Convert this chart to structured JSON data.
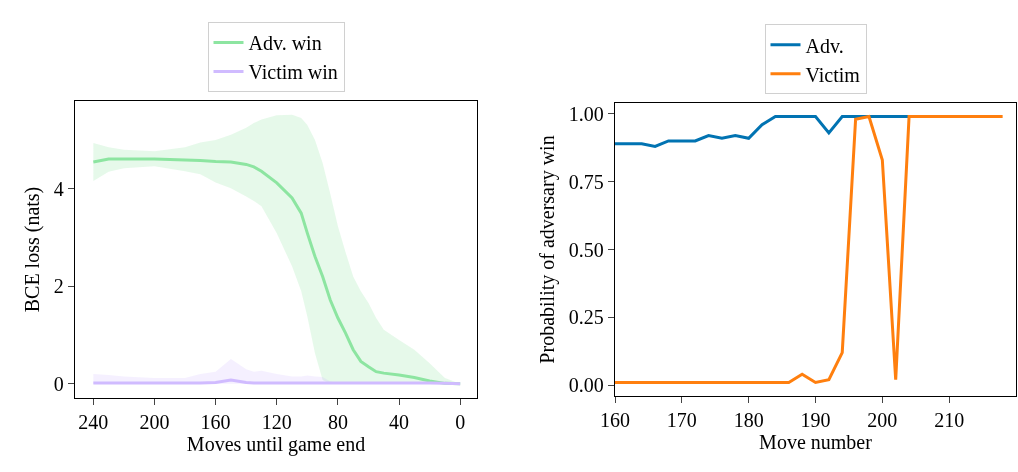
{
  "chart_data": [
    {
      "type": "line",
      "xlabel": "Moves until game end",
      "ylabel": "BCE loss (nats)",
      "legend": "top",
      "xlim": [
        252,
        -11
      ],
      "xticks": [
        240,
        200,
        160,
        120,
        80,
        40,
        0
      ],
      "ylim": [
        -0.29,
        5.8
      ],
      "yticks": [
        0,
        2,
        4
      ],
      "x": [
        240,
        230,
        220,
        200,
        180,
        170,
        160,
        150,
        140,
        135,
        130,
        120,
        110,
        104,
        100,
        95,
        90,
        85,
        80,
        75,
        70,
        65,
        60,
        55,
        50,
        40,
        30,
        20,
        10,
        0
      ],
      "series": [
        {
          "name": "Adv. win",
          "color": "#8de5a1",
          "values": [
            4.55,
            4.61,
            4.61,
            4.61,
            4.59,
            4.58,
            4.56,
            4.55,
            4.5,
            4.45,
            4.36,
            4.12,
            3.81,
            3.5,
            3.09,
            2.61,
            2.2,
            1.72,
            1.35,
            1.04,
            0.7,
            0.46,
            0.35,
            0.25,
            0.22,
            0.18,
            0.13,
            0.06,
            0.01,
            0
          ],
          "upper": [
            4.94,
            4.85,
            4.8,
            4.77,
            4.85,
            4.95,
            5.0,
            5.11,
            5.25,
            5.35,
            5.42,
            5.51,
            5.52,
            5.45,
            5.31,
            5.0,
            4.53,
            3.9,
            3.23,
            2.7,
            2.2,
            1.9,
            1.66,
            1.35,
            1.11,
            0.9,
            0.7,
            0.42,
            0.12,
            0
          ],
          "lower": [
            4.16,
            4.35,
            4.42,
            4.46,
            4.36,
            4.3,
            4.13,
            4.01,
            3.84,
            3.75,
            3.64,
            3.09,
            2.41,
            1.9,
            1.38,
            0.63,
            0.08,
            0,
            0,
            0,
            0,
            0,
            0,
            0,
            0,
            0,
            0,
            0,
            0,
            0
          ]
        },
        {
          "name": "Victim win",
          "color": "#d0bbff",
          "values": [
            0.02,
            0.02,
            0.02,
            0.02,
            0.02,
            0.02,
            0.03,
            0.08,
            0.03,
            0.02,
            0.02,
            0.02,
            0.02,
            0.02,
            0.02,
            0.02,
            0.02,
            0.02,
            0.02,
            0.02,
            0.02,
            0.02,
            0.02,
            0.02,
            0.02,
            0.02,
            0.02,
            0.02,
            0.01,
            0
          ],
          "upper": [
            0.2,
            0.18,
            0.15,
            0.12,
            0.12,
            0.2,
            0.25,
            0.51,
            0.3,
            0.25,
            0.27,
            0.2,
            0.15,
            0.15,
            0.17,
            0.15,
            0.14,
            0.05,
            0.02,
            0.02,
            0.02,
            0.02,
            0.02,
            0.02,
            0.02,
            0.02,
            0.02,
            0.02,
            0.01,
            0
          ],
          "lower": [
            0,
            0,
            0,
            0,
            0,
            0,
            0,
            0,
            0,
            0,
            0,
            0,
            0,
            0,
            0,
            0,
            0,
            0,
            0,
            0,
            0,
            0,
            0,
            0,
            0,
            0,
            0,
            0,
            0,
            0
          ]
        }
      ]
    },
    {
      "type": "line",
      "xlabel": "Move number",
      "ylabel": "Probability of adversary win",
      "legend": "top",
      "xlim": [
        160,
        220
      ],
      "xticks": [
        160,
        170,
        180,
        190,
        200,
        210
      ],
      "ylim": [
        -0.04,
        1.04
      ],
      "yticks": [
        {
          "value": 0,
          "label": "0.00"
        },
        0.25,
        {
          "value": 0.5,
          "label": "0.50"
        },
        0.75,
        {
          "value": 1,
          "label": "1.00"
        }
      ],
      "x": [
        160,
        162,
        164,
        166,
        168,
        170,
        172,
        174,
        176,
        178,
        180,
        182,
        184,
        186,
        188,
        190,
        192,
        194,
        196,
        198,
        200,
        202,
        204,
        206,
        208,
        210,
        212,
        214,
        216,
        218
      ],
      "series": [
        {
          "name": "Adv.",
          "color": "#0173b2",
          "values": [
            0.89,
            0.89,
            0.89,
            0.88,
            0.9,
            0.9,
            0.9,
            0.92,
            0.91,
            0.92,
            0.91,
            0.96,
            0.99,
            0.99,
            0.99,
            0.99,
            0.93,
            0.99,
            0.99,
            0.99,
            0.99,
            0.99,
            0.99,
            null,
            null,
            null,
            null,
            null,
            null,
            null
          ]
        },
        {
          "name": "Victim",
          "color": "#ff7f0e",
          "values": [
            0.01,
            0.01,
            0.01,
            0.01,
            0.01,
            0.01,
            0.01,
            0.01,
            0.01,
            0.01,
            0.01,
            0.01,
            0.01,
            0.01,
            0.04,
            0.01,
            0.02,
            0.12,
            0.98,
            0.99,
            0.83,
            0.02,
            0.99,
            0.99,
            0.99,
            0.99,
            0.99,
            0.99,
            0.99,
            0.99
          ]
        }
      ]
    }
  ]
}
